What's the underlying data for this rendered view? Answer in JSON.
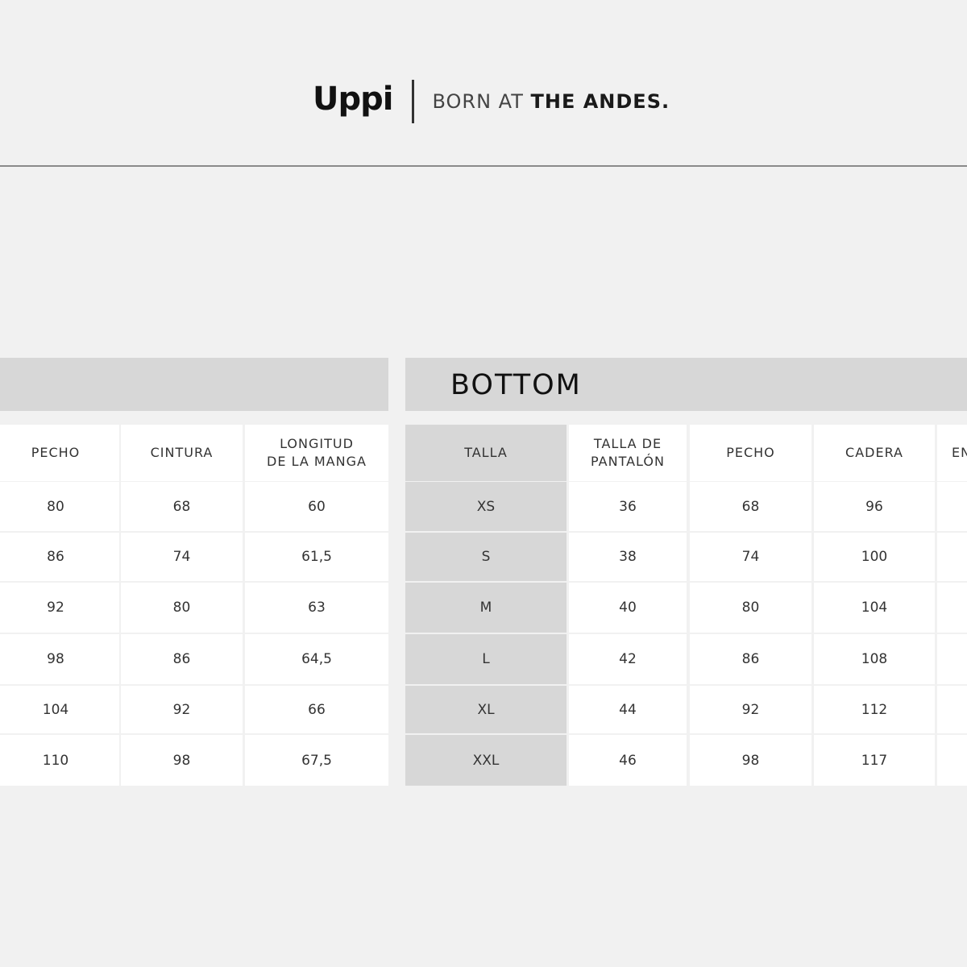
{
  "brand": {
    "logo": "Uppi",
    "tagline_light": "BORN AT",
    "tagline_bold": "THE ANDES."
  },
  "top_table": {
    "headers": [
      "PECHO",
      "CINTURA",
      "LONGITUD\nDE LA MANGA"
    ],
    "rows": [
      [
        "80",
        "68",
        "60"
      ],
      [
        "86",
        "74",
        "61,5"
      ],
      [
        "92",
        "80",
        "63"
      ],
      [
        "98",
        "86",
        "64,5"
      ],
      [
        "104",
        "92",
        "66"
      ],
      [
        "110",
        "98",
        "67,5"
      ]
    ]
  },
  "bottom_table": {
    "title": "BOTTOM",
    "headers": [
      "TALLA",
      "TALLA DE\nPANTALÓN",
      "PECHO",
      "CADERA",
      "EN"
    ],
    "rows": [
      [
        "XS",
        "36",
        "68",
        "96",
        ""
      ],
      [
        "S",
        "38",
        "74",
        "100",
        ""
      ],
      [
        "M",
        "40",
        "80",
        "104",
        ""
      ],
      [
        "L",
        "42",
        "86",
        "108",
        ""
      ],
      [
        "XL",
        "44",
        "92",
        "112",
        ""
      ],
      [
        "XXL",
        "46",
        "98",
        "117",
        ""
      ]
    ]
  },
  "colors": {
    "background": "#f1f1f1",
    "band": "#d7d7d7",
    "cell": "#ffffff"
  }
}
